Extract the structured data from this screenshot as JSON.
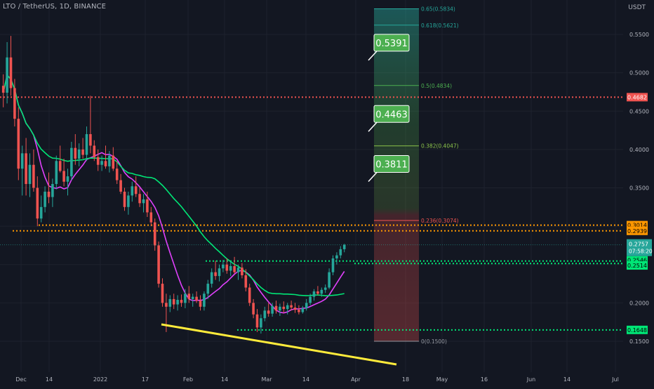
{
  "header": {
    "symbol_title": "LTO / TetherUS, 1D, BINANCE",
    "currency": "USDT"
  },
  "colors": {
    "background": "#131722",
    "up": "#26a69a",
    "down": "#ef5350",
    "ma_fast": "#e040fb",
    "ma_slow": "#00e676",
    "trendline": "#ffeb3b",
    "support": "#00e676",
    "resistance_orange": "#ff9800",
    "resistance_red": "#ef5350",
    "target_label": "#4caf50"
  },
  "chart_data": {
    "type": "candlestick",
    "title": "LTO / TetherUS, 1D, BINANCE",
    "ylabel": "USDT",
    "ylim": [
      0.14,
      0.59
    ],
    "x_ticks": [
      "Dec",
      "14",
      "2022",
      "17",
      "Feb",
      "14",
      "Mar",
      "14",
      "Apr",
      "18",
      "May",
      "16",
      "Jun",
      "14",
      "Jul"
    ],
    "y_ticks": [
      "0.5500",
      "0.5000",
      "0.4500",
      "0.4000",
      "0.3500",
      "0.2000",
      "0.1500"
    ],
    "candles": [
      {
        "o": 0.483,
        "h": 0.498,
        "l": 0.455,
        "c": 0.474
      },
      {
        "o": 0.474,
        "h": 0.54,
        "l": 0.46,
        "c": 0.52
      },
      {
        "o": 0.52,
        "h": 0.548,
        "l": 0.47,
        "c": 0.48
      },
      {
        "o": 0.48,
        "h": 0.492,
        "l": 0.43,
        "c": 0.44
      },
      {
        "o": 0.44,
        "h": 0.455,
        "l": 0.36,
        "c": 0.375
      },
      {
        "o": 0.375,
        "h": 0.405,
        "l": 0.34,
        "c": 0.395
      },
      {
        "o": 0.395,
        "h": 0.415,
        "l": 0.34,
        "c": 0.355
      },
      {
        "o": 0.355,
        "h": 0.395,
        "l": 0.338,
        "c": 0.38
      },
      {
        "o": 0.38,
        "h": 0.4,
        "l": 0.345,
        "c": 0.35
      },
      {
        "o": 0.35,
        "h": 0.365,
        "l": 0.3,
        "c": 0.31
      },
      {
        "o": 0.31,
        "h": 0.34,
        "l": 0.305,
        "c": 0.325
      },
      {
        "o": 0.325,
        "h": 0.352,
        "l": 0.318,
        "c": 0.345
      },
      {
        "o": 0.345,
        "h": 0.37,
        "l": 0.33,
        "c": 0.338
      },
      {
        "o": 0.338,
        "h": 0.362,
        "l": 0.325,
        "c": 0.355
      },
      {
        "o": 0.355,
        "h": 0.392,
        "l": 0.348,
        "c": 0.385
      },
      {
        "o": 0.385,
        "h": 0.405,
        "l": 0.37,
        "c": 0.372
      },
      {
        "o": 0.372,
        "h": 0.388,
        "l": 0.352,
        "c": 0.358
      },
      {
        "o": 0.358,
        "h": 0.375,
        "l": 0.34,
        "c": 0.365
      },
      {
        "o": 0.365,
        "h": 0.41,
        "l": 0.36,
        "c": 0.402
      },
      {
        "o": 0.402,
        "h": 0.42,
        "l": 0.38,
        "c": 0.388
      },
      {
        "o": 0.388,
        "h": 0.408,
        "l": 0.378,
        "c": 0.4
      },
      {
        "o": 0.4,
        "h": 0.415,
        "l": 0.388,
        "c": 0.393
      },
      {
        "o": 0.393,
        "h": 0.43,
        "l": 0.385,
        "c": 0.42
      },
      {
        "o": 0.42,
        "h": 0.47,
        "l": 0.395,
        "c": 0.405
      },
      {
        "o": 0.405,
        "h": 0.412,
        "l": 0.385,
        "c": 0.39
      },
      {
        "o": 0.39,
        "h": 0.4,
        "l": 0.372,
        "c": 0.38
      },
      {
        "o": 0.38,
        "h": 0.392,
        "l": 0.372,
        "c": 0.385
      },
      {
        "o": 0.385,
        "h": 0.405,
        "l": 0.375,
        "c": 0.378
      },
      {
        "o": 0.378,
        "h": 0.398,
        "l": 0.37,
        "c": 0.392
      },
      {
        "o": 0.392,
        "h": 0.403,
        "l": 0.372,
        "c": 0.375
      },
      {
        "o": 0.375,
        "h": 0.385,
        "l": 0.355,
        "c": 0.36
      },
      {
        "o": 0.36,
        "h": 0.368,
        "l": 0.342,
        "c": 0.345
      },
      {
        "o": 0.345,
        "h": 0.35,
        "l": 0.32,
        "c": 0.325
      },
      {
        "o": 0.325,
        "h": 0.345,
        "l": 0.315,
        "c": 0.34
      },
      {
        "o": 0.34,
        "h": 0.358,
        "l": 0.332,
        "c": 0.352
      },
      {
        "o": 0.352,
        "h": 0.365,
        "l": 0.338,
        "c": 0.342
      },
      {
        "o": 0.342,
        "h": 0.35,
        "l": 0.325,
        "c": 0.33
      },
      {
        "o": 0.33,
        "h": 0.342,
        "l": 0.318,
        "c": 0.335
      },
      {
        "o": 0.335,
        "h": 0.345,
        "l": 0.312,
        "c": 0.318
      },
      {
        "o": 0.318,
        "h": 0.325,
        "l": 0.3,
        "c": 0.305
      },
      {
        "o": 0.305,
        "h": 0.31,
        "l": 0.268,
        "c": 0.275
      },
      {
        "o": 0.275,
        "h": 0.28,
        "l": 0.22,
        "c": 0.225
      },
      {
        "o": 0.225,
        "h": 0.232,
        "l": 0.195,
        "c": 0.2
      },
      {
        "o": 0.2,
        "h": 0.212,
        "l": 0.162,
        "c": 0.195
      },
      {
        "o": 0.195,
        "h": 0.21,
        "l": 0.188,
        "c": 0.205
      },
      {
        "o": 0.205,
        "h": 0.212,
        "l": 0.192,
        "c": 0.198
      },
      {
        "o": 0.198,
        "h": 0.21,
        "l": 0.19,
        "c": 0.204
      },
      {
        "o": 0.204,
        "h": 0.211,
        "l": 0.195,
        "c": 0.2
      },
      {
        "o": 0.2,
        "h": 0.218,
        "l": 0.193,
        "c": 0.212
      },
      {
        "o": 0.212,
        "h": 0.222,
        "l": 0.2,
        "c": 0.205
      },
      {
        "o": 0.205,
        "h": 0.212,
        "l": 0.195,
        "c": 0.208
      },
      {
        "o": 0.208,
        "h": 0.215,
        "l": 0.2,
        "c": 0.203
      },
      {
        "o": 0.203,
        "h": 0.21,
        "l": 0.19,
        "c": 0.195
      },
      {
        "o": 0.195,
        "h": 0.215,
        "l": 0.19,
        "c": 0.212
      },
      {
        "o": 0.212,
        "h": 0.23,
        "l": 0.205,
        "c": 0.225
      },
      {
        "o": 0.225,
        "h": 0.245,
        "l": 0.22,
        "c": 0.24
      },
      {
        "o": 0.24,
        "h": 0.255,
        "l": 0.23,
        "c": 0.235
      },
      {
        "o": 0.235,
        "h": 0.25,
        "l": 0.228,
        "c": 0.245
      },
      {
        "o": 0.245,
        "h": 0.256,
        "l": 0.24,
        "c": 0.25
      },
      {
        "o": 0.25,
        "h": 0.258,
        "l": 0.238,
        "c": 0.242
      },
      {
        "o": 0.242,
        "h": 0.254,
        "l": 0.235,
        "c": 0.248
      },
      {
        "o": 0.248,
        "h": 0.26,
        "l": 0.238,
        "c": 0.24
      },
      {
        "o": 0.24,
        "h": 0.25,
        "l": 0.23,
        "c": 0.246
      },
      {
        "o": 0.246,
        "h": 0.252,
        "l": 0.232,
        "c": 0.236
      },
      {
        "o": 0.236,
        "h": 0.244,
        "l": 0.215,
        "c": 0.22
      },
      {
        "o": 0.22,
        "h": 0.225,
        "l": 0.196,
        "c": 0.2
      },
      {
        "o": 0.2,
        "h": 0.205,
        "l": 0.18,
        "c": 0.185
      },
      {
        "o": 0.185,
        "h": 0.192,
        "l": 0.162,
        "c": 0.168
      },
      {
        "o": 0.168,
        "h": 0.185,
        "l": 0.16,
        "c": 0.18
      },
      {
        "o": 0.18,
        "h": 0.195,
        "l": 0.176,
        "c": 0.19
      },
      {
        "o": 0.19,
        "h": 0.2,
        "l": 0.182,
        "c": 0.186
      },
      {
        "o": 0.186,
        "h": 0.2,
        "l": 0.182,
        "c": 0.196
      },
      {
        "o": 0.196,
        "h": 0.203,
        "l": 0.186,
        "c": 0.19
      },
      {
        "o": 0.19,
        "h": 0.199,
        "l": 0.183,
        "c": 0.195
      },
      {
        "o": 0.195,
        "h": 0.202,
        "l": 0.187,
        "c": 0.192
      },
      {
        "o": 0.192,
        "h": 0.2,
        "l": 0.185,
        "c": 0.197
      },
      {
        "o": 0.197,
        "h": 0.203,
        "l": 0.19,
        "c": 0.194
      },
      {
        "o": 0.194,
        "h": 0.2,
        "l": 0.187,
        "c": 0.191
      },
      {
        "o": 0.191,
        "h": 0.197,
        "l": 0.185,
        "c": 0.188
      },
      {
        "o": 0.188,
        "h": 0.196,
        "l": 0.186,
        "c": 0.193
      },
      {
        "o": 0.193,
        "h": 0.205,
        "l": 0.19,
        "c": 0.2
      },
      {
        "o": 0.2,
        "h": 0.212,
        "l": 0.197,
        "c": 0.208
      },
      {
        "o": 0.208,
        "h": 0.218,
        "l": 0.203,
        "c": 0.215
      },
      {
        "o": 0.215,
        "h": 0.222,
        "l": 0.21,
        "c": 0.212
      },
      {
        "o": 0.212,
        "h": 0.22,
        "l": 0.208,
        "c": 0.217
      },
      {
        "o": 0.217,
        "h": 0.224,
        "l": 0.213,
        "c": 0.22
      },
      {
        "o": 0.22,
        "h": 0.245,
        "l": 0.218,
        "c": 0.24
      },
      {
        "o": 0.24,
        "h": 0.262,
        "l": 0.236,
        "c": 0.258
      },
      {
        "o": 0.258,
        "h": 0.266,
        "l": 0.25,
        "c": 0.262
      },
      {
        "o": 0.262,
        "h": 0.274,
        "l": 0.258,
        "c": 0.27
      },
      {
        "o": 0.27,
        "h": 0.277,
        "l": 0.266,
        "c": 0.2757
      }
    ],
    "moving_averages": [
      {
        "name": "",
        "color": "#e040fb",
        "period": 9
      },
      {
        "name": "",
        "color": "#00e676",
        "period": 30
      }
    ],
    "fib_levels": [
      {
        "label": "0.65(0.5834)",
        "value": 0.5834,
        "color": "#26a69a"
      },
      {
        "label": "0.618(0.5621)",
        "value": 0.5621,
        "color": "#26a69a"
      },
      {
        "label": "0.5(0.4834)",
        "value": 0.4834,
        "color": "#4caf50"
      },
      {
        "label": "0.382(0.4047)",
        "value": 0.4047,
        "color": "#8bc34a"
      },
      {
        "label": "0.236(0.3074)",
        "value": 0.3074,
        "color": "#ef5350"
      },
      {
        "label": "0(0.1500)",
        "value": 0.15,
        "color": "#9598a1"
      }
    ],
    "horizontal_lines": [
      {
        "value": 0.4682,
        "color": "#ef5350",
        "label": "0.4682"
      },
      {
        "value": 0.3014,
        "color": "#ff9800",
        "label": "0.3014"
      },
      {
        "value": 0.2939,
        "color": "#ff9800",
        "label": "0.2939"
      },
      {
        "value": 0.2546,
        "color": "#00e676",
        "label": "0.2546"
      },
      {
        "value": 0.2514,
        "color": "#00e676",
        "label": "0.2514"
      },
      {
        "value": 0.1648,
        "color": "#00e676",
        "label": "0.1648"
      }
    ],
    "targets": [
      {
        "label": "0.5391",
        "value": 0.5391
      },
      {
        "label": "0.4463",
        "value": 0.4463
      },
      {
        "label": "0.3811",
        "value": 0.3811
      }
    ],
    "current_price": {
      "value": 0.2757,
      "label": "0.2757",
      "countdown": "07:58:20"
    }
  }
}
